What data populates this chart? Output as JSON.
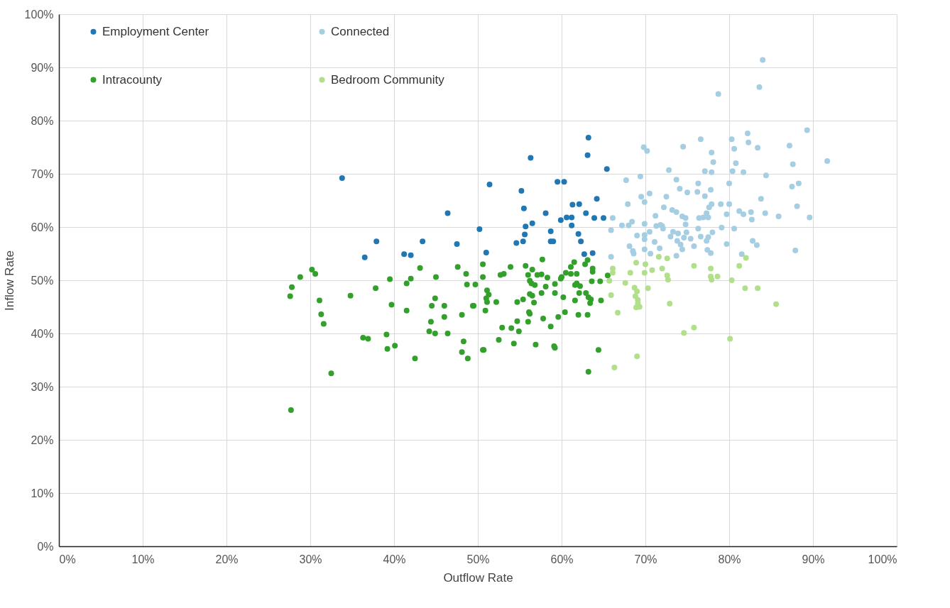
{
  "chart_data": {
    "type": "scatter",
    "xlabel": "Outflow Rate",
    "ylabel": "Inflow Rate",
    "xlim": [
      0,
      100
    ],
    "ylim": [
      0,
      100
    ],
    "xticks": [
      {
        "value": 0,
        "label": "0%"
      },
      {
        "value": 10,
        "label": "10%"
      },
      {
        "value": 20,
        "label": "20%"
      },
      {
        "value": 30,
        "label": "30%"
      },
      {
        "value": 40,
        "label": "40%"
      },
      {
        "value": 50,
        "label": "50%"
      },
      {
        "value": 60,
        "label": "60%"
      },
      {
        "value": 70,
        "label": "70%"
      },
      {
        "value": 80,
        "label": "80%"
      },
      {
        "value": 90,
        "label": "90%"
      },
      {
        "value": 100,
        "label": "100%"
      }
    ],
    "yticks": [
      {
        "value": 0,
        "label": "0%"
      },
      {
        "value": 10,
        "label": "10%"
      },
      {
        "value": 20,
        "label": "20%"
      },
      {
        "value": 30,
        "label": "30%"
      },
      {
        "value": 40,
        "label": "40%"
      },
      {
        "value": 50,
        "label": "50%"
      },
      {
        "value": 60,
        "label": "60%"
      },
      {
        "value": 70,
        "label": "70%"
      },
      {
        "value": 80,
        "label": "80%"
      },
      {
        "value": 90,
        "label": "90%"
      },
      {
        "value": 100,
        "label": "100%"
      }
    ],
    "grid": true,
    "legend": "top left",
    "marker": "circle",
    "series": [
      {
        "name": "Employment Center",
        "color": "#1f78b4",
        "x": [
          33.8,
          36.5,
          37.9,
          41.2,
          42.0,
          43.4,
          46.4,
          47.5,
          50.2,
          51.0,
          51.4,
          54.6,
          55.4,
          55.2,
          55.5,
          55.6,
          55.7,
          56.3,
          56.5,
          58.1,
          58.7,
          58.7,
          59.0,
          59.5,
          59.9,
          60.3,
          60.6,
          61.2,
          61.2,
          61.3,
          62.0,
          62.1,
          62.3,
          62.7,
          62.9,
          63.2,
          63.1,
          63.7,
          63.9,
          64.2,
          65.0,
          65.4
        ],
        "values": [
          69.2,
          54.3,
          57.3,
          54.9,
          54.7,
          57.3,
          62.6,
          56.8,
          59.6,
          55.2,
          68.0,
          57.0,
          57.3,
          66.8,
          63.5,
          58.6,
          60.1,
          73.0,
          60.7,
          62.6,
          59.2,
          57.3,
          57.3,
          68.5,
          61.3,
          68.5,
          61.8,
          61.8,
          60.3,
          64.2,
          58.7,
          64.3,
          57.3,
          54.9,
          62.6,
          76.8,
          73.5,
          55.1,
          61.7,
          65.3,
          61.7,
          70.9
        ]
      },
      {
        "name": "Connected",
        "color": "#a6cee3",
        "x": [
          84.0,
          83.6,
          78.7,
          89.3,
          82.2,
          76.6,
          80.3,
          82.3,
          74.5,
          83.4,
          87.2,
          80.6,
          77.9,
          78.1,
          80.8,
          87.6,
          91.7,
          72.8,
          77.1,
          77.9,
          80.4,
          81.7,
          84.4,
          73.7,
          76.3,
          80.0,
          74.1,
          75.0,
          76.2,
          77.8,
          87.5,
          88.3,
          72.5,
          77.1,
          83.8,
          72.2,
          77.9,
          77.6,
          79.0,
          80.0,
          88.1,
          73.2,
          73.7,
          81.2,
          81.7,
          82.6,
          84.3,
          74.4,
          74.8,
          77.3,
          76.4,
          76.9,
          77.5,
          79.7,
          82.7,
          85.9,
          89.6,
          74.8,
          71.8,
          72.1,
          76.3,
          79.1,
          80.6,
          73.3,
          73.0,
          73.9,
          74.9,
          75.4,
          74.6,
          78.0,
          77.5,
          76.6,
          77.3,
          73.8,
          74.2,
          74.4,
          71.7,
          75.8,
          79.7,
          82.8,
          83.3,
          73.7,
          77.4,
          77.8,
          81.5,
          87.9,
          69.8,
          70.2,
          69.4,
          67.7,
          69.5,
          70.5,
          69.9,
          67.9,
          71.2,
          66.1,
          67.2,
          68.0,
          68.4,
          69.9,
          65.9,
          70.5,
          71.3,
          72.0,
          69.0,
          69.9,
          69.9,
          71.1,
          68.1,
          68.5,
          68.6,
          69.9,
          70.6,
          65.9
        ],
        "values": [
          91.4,
          86.3,
          85.0,
          78.2,
          77.6,
          76.5,
          76.5,
          75.9,
          75.1,
          74.9,
          75.3,
          74.7,
          74.0,
          72.2,
          72.0,
          71.8,
          72.4,
          70.7,
          70.5,
          70.3,
          70.5,
          70.3,
          69.7,
          68.9,
          68.2,
          68.2,
          67.2,
          66.5,
          66.6,
          67.0,
          67.6,
          68.2,
          65.7,
          65.8,
          65.3,
          63.7,
          64.3,
          63.7,
          64.3,
          64.3,
          63.9,
          63.2,
          62.8,
          63.0,
          62.4,
          62.8,
          62.6,
          62.0,
          61.7,
          62.6,
          61.7,
          61.8,
          61.8,
          62.4,
          61.4,
          62.0,
          61.8,
          60.5,
          60.4,
          59.7,
          59.7,
          59.9,
          59.7,
          59.1,
          58.2,
          58.8,
          59.0,
          57.8,
          58.0,
          59.0,
          58.1,
          58.2,
          57.4,
          57.4,
          56.7,
          55.8,
          56.0,
          56.4,
          56.8,
          57.4,
          56.6,
          54.6,
          55.7,
          55.1,
          54.9,
          55.6,
          75.0,
          74.3,
          69.5,
          68.8,
          65.7,
          66.3,
          64.7,
          64.3,
          62.1,
          61.7,
          60.3,
          60.3,
          61.0,
          60.6,
          59.4,
          59.1,
          60.2,
          60.2,
          58.4,
          58.5,
          57.7,
          57.2,
          56.4,
          55.5,
          55.0,
          55.8,
          55.0,
          54.4
        ]
      },
      {
        "name": "Intracounty",
        "color": "#33a02c",
        "x": [
          27.7,
          30.2,
          30.6,
          28.8,
          27.8,
          27.6,
          31.1,
          31.3,
          31.6,
          34.8,
          32.5,
          39.5,
          37.8,
          39.7,
          36.3,
          36.9,
          39.1,
          39.2,
          40.1,
          42.5,
          41.5,
          41.5,
          42.0,
          43.1,
          45.0,
          44.9,
          44.5,
          46.0,
          46.0,
          44.4,
          44.2,
          44.9,
          46.4,
          48.1,
          49.4,
          47.6,
          48.6,
          48.7,
          49.7,
          50.6,
          50.6,
          48.3,
          48.1,
          48.8,
          50.6,
          51.1,
          51.3,
          51.0,
          51.1,
          50.9,
          57.7,
          52.7,
          53.1,
          53.9,
          55.7,
          56.5,
          56.0,
          57.1,
          57.6,
          58.3,
          56.2,
          56.4,
          56.8,
          58.1,
          59.2,
          59.9,
          60.0,
          60.5,
          61.1,
          61.8,
          61.1,
          61.5,
          62.8,
          63.1,
          63.7,
          63.7,
          65.5,
          61.6,
          61.8,
          62.2,
          63.6,
          64.6,
          62.1,
          62.9,
          63.2,
          63.5,
          63.4,
          64.7,
          61.6,
          59.2,
          60.2,
          57.6,
          56.2,
          56.5,
          56.7,
          54.7,
          55.4,
          52.2,
          49.5,
          56.1,
          56.2,
          54.7,
          56.0,
          57.8,
          58.7,
          59.6,
          60.4,
          62.0,
          63.1,
          52.9,
          54.0,
          54.9,
          52.5,
          54.3,
          56.9,
          59.1,
          59.2,
          50.7,
          64.4,
          63.2
        ],
        "values": [
          25.6,
          52.0,
          51.2,
          50.6,
          48.7,
          47.0,
          46.2,
          43.6,
          41.8,
          47.1,
          32.5,
          50.2,
          48.5,
          45.4,
          39.2,
          39.0,
          39.8,
          37.1,
          37.7,
          35.3,
          44.3,
          49.4,
          50.3,
          52.3,
          50.6,
          46.6,
          45.2,
          45.2,
          43.1,
          42.2,
          40.4,
          40.0,
          40.0,
          43.5,
          45.2,
          52.5,
          51.2,
          49.2,
          49.2,
          53.0,
          50.6,
          38.5,
          36.5,
          35.3,
          36.9,
          48.1,
          47.3,
          46.6,
          45.9,
          44.3,
          53.9,
          51.0,
          51.2,
          52.5,
          52.7,
          52.0,
          51.0,
          51.0,
          51.1,
          50.5,
          49.9,
          49.4,
          49.1,
          48.8,
          49.3,
          50.3,
          50.6,
          51.4,
          51.2,
          51.2,
          52.5,
          53.4,
          53.0,
          53.8,
          52.2,
          51.6,
          50.9,
          49.1,
          49.4,
          48.9,
          49.8,
          49.8,
          47.6,
          47.6,
          46.8,
          46.4,
          45.7,
          46.2,
          46.2,
          47.6,
          46.8,
          47.6,
          47.4,
          47.1,
          45.8,
          45.9,
          46.4,
          45.9,
          45.2,
          44.0,
          43.7,
          42.3,
          42.2,
          42.8,
          41.3,
          43.1,
          44.0,
          43.5,
          43.5,
          41.1,
          41.0,
          40.4,
          38.8,
          38.1,
          37.9,
          37.6,
          37.3,
          36.9,
          36.9,
          32.8
        ]
      },
      {
        "name": "Bedroom Community",
        "color": "#b2df8a",
        "x": [
          71.6,
          72.6,
          68.9,
          70.0,
          66.1,
          66.1,
          68.2,
          69.9,
          70.8,
          72.0,
          72.6,
          72.7,
          65.7,
          67.6,
          68.7,
          69.0,
          68.8,
          69.1,
          69.1,
          68.9,
          69.3,
          70.3,
          65.9,
          66.7,
          72.9,
          69.0,
          66.3,
          82.0,
          75.8,
          81.2,
          77.8,
          77.8,
          77.9,
          78.6,
          80.3,
          81.9,
          83.4,
          85.6,
          75.8,
          74.6,
          80.1
        ],
        "values": [
          54.4,
          54.1,
          53.3,
          53.0,
          52.2,
          51.4,
          51.4,
          51.4,
          51.9,
          52.2,
          50.9,
          50.1,
          49.9,
          49.5,
          48.6,
          47.9,
          47.0,
          46.3,
          45.7,
          44.9,
          45.0,
          48.5,
          47.2,
          43.9,
          45.6,
          35.7,
          33.6,
          54.2,
          52.7,
          52.7,
          52.2,
          50.7,
          50.1,
          50.7,
          50.0,
          48.5,
          48.5,
          45.5,
          41.1,
          40.1,
          39.0
        ]
      }
    ]
  }
}
